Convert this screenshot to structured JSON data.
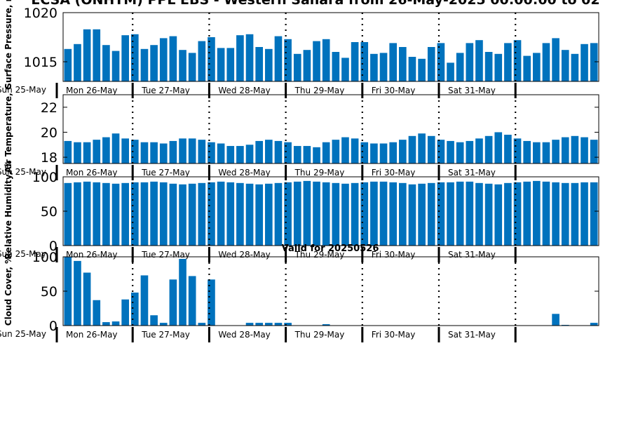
{
  "title": "ECSA (ONHTM) PPL EBS - Western Sahara from 26-May-2025 00:00:00 to 02",
  "subtitle": "Valid for 20250526",
  "day_labels": [
    "Mon 26-May",
    "Tue 27-May",
    "Wed 28-May",
    "Thu 29-May",
    "Fri 30-May",
    "Sat 31-May"
  ],
  "first_tick_label": "Sun 25-May",
  "bar_color": "#0072bd",
  "chart_data": [
    {
      "type": "bar",
      "ylabel": "Surface Pressure, mb",
      "ylim": [
        1013,
        1020
      ],
      "yticks": [
        1015,
        1020
      ],
      "values": [
        1016.3,
        1016.8,
        1018.3,
        1018.3,
        1016.7,
        1016.1,
        1017.7,
        1017.8,
        1016.3,
        1016.7,
        1017.4,
        1017.6,
        1016.2,
        1015.9,
        1017.1,
        1017.5,
        1016.4,
        1016.4,
        1017.7,
        1017.8,
        1016.5,
        1016.3,
        1017.6,
        1017.3,
        1015.8,
        1016.2,
        1017.1,
        1017.3,
        1016.0,
        1015.4,
        1017.0,
        1017.0,
        1015.8,
        1015.9,
        1016.9,
        1016.5,
        1015.5,
        1015.3,
        1016.5,
        1016.9,
        1014.9,
        1015.9,
        1016.9,
        1017.2,
        1016.0,
        1015.8,
        1016.9,
        1017.2,
        1015.6,
        1015.9,
        1016.9,
        1017.4,
        1016.2,
        1015.8,
        1016.8,
        1016.9
      ],
      "grid": false
    },
    {
      "type": "bar",
      "ylabel": "Air Temperature, C",
      "ylim": [
        17.5,
        23
      ],
      "yticks": [
        18,
        20,
        22
      ],
      "values": [
        19.3,
        19.2,
        19.2,
        19.4,
        19.6,
        19.9,
        19.5,
        19.4,
        19.2,
        19.2,
        19.1,
        19.3,
        19.5,
        19.5,
        19.4,
        19.2,
        19.1,
        18.9,
        18.9,
        19.0,
        19.3,
        19.4,
        19.3,
        19.2,
        18.9,
        18.9,
        18.8,
        19.2,
        19.4,
        19.6,
        19.5,
        19.2,
        19.1,
        19.1,
        19.2,
        19.4,
        19.7,
        19.9,
        19.7,
        19.4,
        19.3,
        19.2,
        19.3,
        19.5,
        19.7,
        20.0,
        19.8,
        19.5,
        19.3,
        19.2,
        19.2,
        19.4,
        19.6,
        19.7,
        19.6,
        19.4
      ],
      "grid": false
    },
    {
      "type": "bar",
      "ylabel": "Relative Humidity, %",
      "ylim": [
        0,
        100
      ],
      "yticks": [
        0,
        50,
        100
      ],
      "values": [
        91,
        92,
        93,
        92,
        91,
        90,
        91,
        92,
        92,
        93,
        92,
        90,
        89,
        90,
        91,
        92,
        93,
        92,
        91,
        90,
        89,
        90,
        91,
        92,
        93,
        94,
        93,
        92,
        91,
        90,
        91,
        92,
        93,
        93,
        92,
        91,
        89,
        90,
        91,
        92,
        92,
        93,
        93,
        91,
        90,
        89,
        91,
        92,
        93,
        94,
        93,
        92,
        91,
        91,
        92,
        92
      ],
      "grid": false
    },
    {
      "type": "bar",
      "ylabel": "Cloud Cover, %",
      "ylim": [
        0,
        100
      ],
      "yticks": [
        0,
        50,
        100
      ],
      "values": [
        100,
        94,
        77,
        37,
        5,
        6,
        38,
        48,
        73,
        15,
        4,
        67,
        97,
        72,
        4,
        67,
        0,
        0,
        0,
        4,
        4,
        4,
        4,
        4,
        0,
        0,
        0,
        2,
        0,
        0,
        0,
        0,
        0,
        0,
        0,
        0,
        0,
        0,
        0,
        0,
        0,
        0,
        0,
        0,
        0,
        0,
        0,
        0,
        0,
        0,
        0,
        17,
        1,
        0,
        0,
        4
      ],
      "grid": false
    }
  ]
}
